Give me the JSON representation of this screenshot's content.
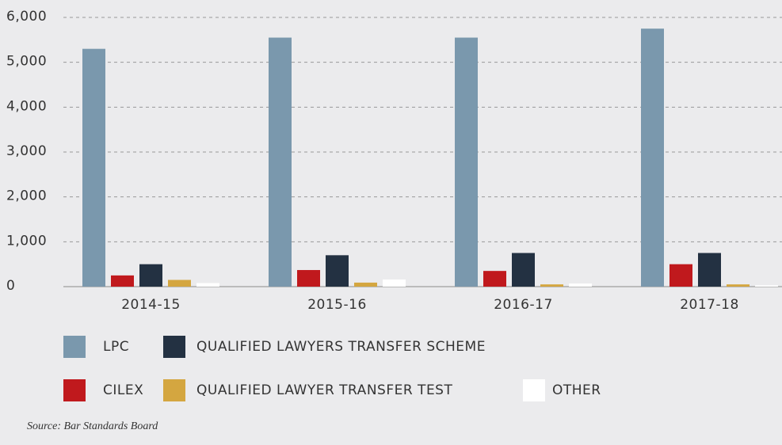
{
  "chart_data": {
    "type": "bar",
    "categories": [
      "2014-15",
      "2015-16",
      "2016-17",
      "2017-18"
    ],
    "series": [
      {
        "name": "LPC",
        "color": "#7a98ad",
        "values": [
          5300,
          5550,
          5550,
          5750
        ]
      },
      {
        "name": "CILEX",
        "color": "#c0191d",
        "values": [
          250,
          370,
          350,
          500
        ]
      },
      {
        "name": "QUALIFIED LAWYERS TRANSFER SCHEME",
        "color": "#233142",
        "values": [
          500,
          700,
          750,
          750
        ]
      },
      {
        "name": "QUALIFIED LAWYER TRANSFER TEST",
        "color": "#d4a640",
        "values": [
          150,
          90,
          50,
          50
        ]
      },
      {
        "name": "OTHER",
        "color": "#ffffff",
        "values": [
          80,
          160,
          70,
          30
        ]
      }
    ],
    "ylim": [
      0,
      6000
    ],
    "yticks": [
      0,
      {
        "value": 1000,
        "label": "1,000"
      },
      {
        "value": 2000,
        "label": "2,000"
      },
      {
        "value": 3000,
        "label": "3,000"
      },
      {
        "value": 4000,
        "label": "4,000"
      },
      {
        "value": 5000,
        "label": "5,000"
      },
      {
        "value": 6000,
        "label": "6,000"
      }
    ],
    "grid": true,
    "source": "Source: Bar Standards Board"
  }
}
